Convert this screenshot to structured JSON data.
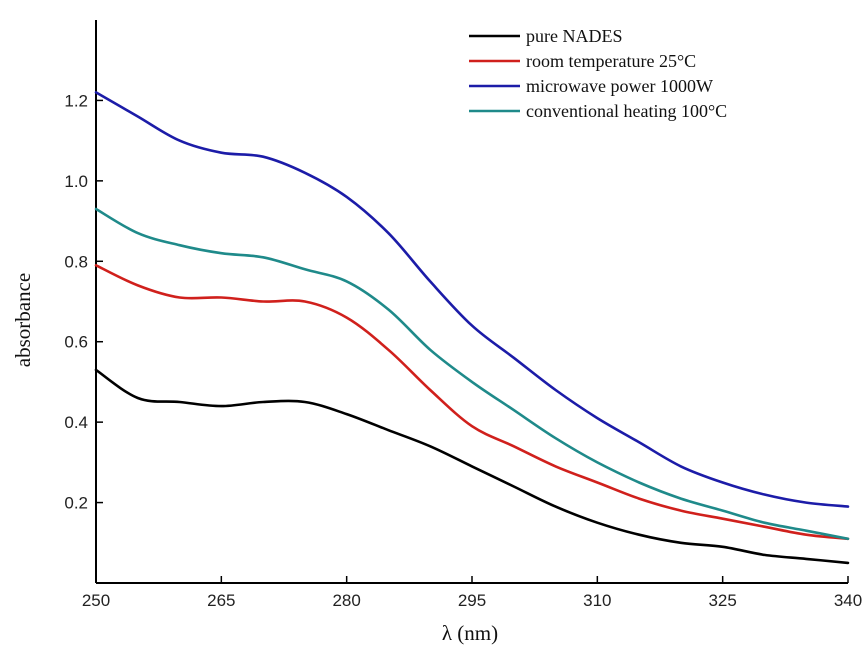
{
  "chart_data": {
    "type": "line",
    "title": "",
    "xlabel": "λ (nm)",
    "ylabel": "absorbance",
    "xlim": [
      250,
      340
    ],
    "ylim": [
      0.0,
      1.4
    ],
    "xticks": [
      250,
      265,
      280,
      295,
      310,
      325,
      340
    ],
    "yticks": [
      0.2,
      0.4,
      0.6,
      0.8,
      1.0,
      1.2
    ],
    "ytick_labels": [
      "0.2",
      "0.4",
      "0.6",
      "0.8",
      "1.0",
      "1.2"
    ],
    "grid": false,
    "legend_position": "top-right",
    "x": [
      250,
      255,
      260,
      265,
      270,
      275,
      280,
      285,
      290,
      295,
      300,
      305,
      310,
      315,
      320,
      325,
      330,
      335,
      340
    ],
    "series": [
      {
        "name": "pure NADES",
        "color": "#000000",
        "values": [
          0.53,
          0.46,
          0.45,
          0.44,
          0.45,
          0.45,
          0.42,
          0.38,
          0.34,
          0.29,
          0.24,
          0.19,
          0.15,
          0.12,
          0.1,
          0.09,
          0.07,
          0.06,
          0.05
        ]
      },
      {
        "name": "room temperature 25°C",
        "color": "#d0201c",
        "values": [
          0.79,
          0.74,
          0.71,
          0.71,
          0.7,
          0.7,
          0.66,
          0.58,
          0.48,
          0.39,
          0.34,
          0.29,
          0.25,
          0.21,
          0.18,
          0.16,
          0.14,
          0.12,
          0.11
        ]
      },
      {
        "name": "microwave power 1000W",
        "color": "#1c1ca8",
        "values": [
          1.22,
          1.16,
          1.1,
          1.07,
          1.06,
          1.02,
          0.96,
          0.87,
          0.75,
          0.64,
          0.56,
          0.48,
          0.41,
          0.35,
          0.29,
          0.25,
          0.22,
          0.2,
          0.19
        ]
      },
      {
        "name": "conventional heating 100°C",
        "color": "#1f8a8a",
        "values": [
          0.93,
          0.87,
          0.84,
          0.82,
          0.81,
          0.78,
          0.75,
          0.68,
          0.58,
          0.5,
          0.43,
          0.36,
          0.3,
          0.25,
          0.21,
          0.18,
          0.15,
          0.13,
          0.11
        ]
      }
    ]
  }
}
